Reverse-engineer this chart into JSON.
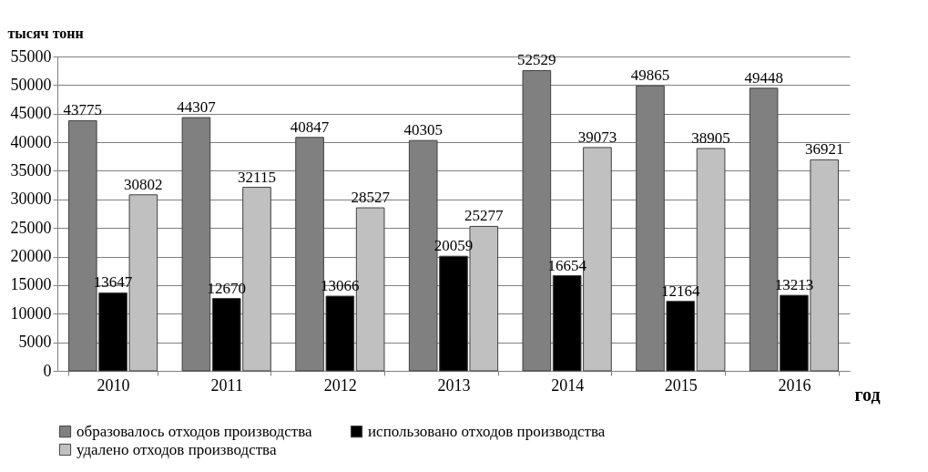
{
  "chart_data": {
    "type": "bar",
    "ylabel": "тысяч тонн",
    "xlabel": "год",
    "categories": [
      "2010",
      "2011",
      "2012",
      "2013",
      "2014",
      "2015",
      "2016"
    ],
    "series": [
      {
        "name": "образовалось отходов производства",
        "color": "#808080",
        "values": [
          43775,
          44307,
          40847,
          40305,
          52529,
          49865,
          49448
        ]
      },
      {
        "name": "использовано отходов производства",
        "color": "#000000",
        "values": [
          13647,
          12670,
          13066,
          20059,
          16654,
          12164,
          13213
        ]
      },
      {
        "name": "удалено отходов производства",
        "color": "#c0c0c0",
        "values": [
          30802,
          32115,
          28527,
          25277,
          39073,
          38905,
          36921
        ]
      }
    ],
    "ylim": [
      0,
      55000
    ],
    "yticks": [
      0,
      5000,
      10000,
      15000,
      20000,
      25000,
      30000,
      35000,
      40000,
      45000,
      50000,
      55000
    ],
    "grid": "y",
    "legend": "bottom",
    "data_labels": true
  }
}
